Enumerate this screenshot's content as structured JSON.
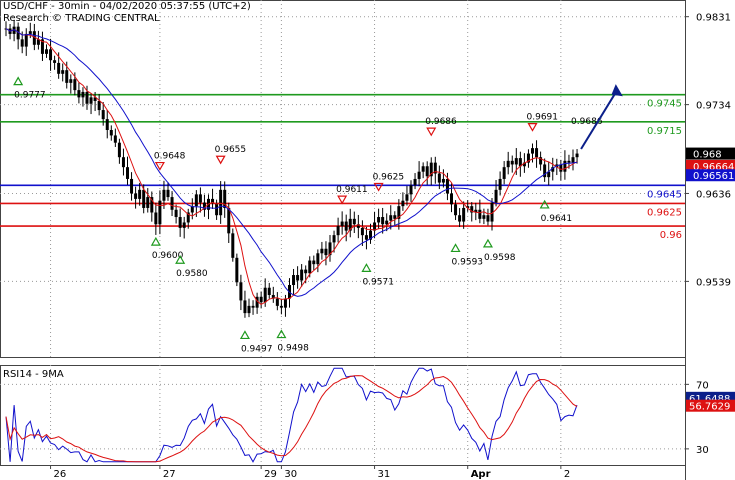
{
  "chart_data": {
    "type": "line",
    "title": "USD/CHF - 30min - 04/02/2020 05:37:55 (UTC+2)",
    "subtitle": "Research © TRADING CENTRAL",
    "price_panel": {
      "ylim": [
        0.946,
        0.9845
      ],
      "y_ticks": [
        {
          "label": "0.9831",
          "value": 0.9831
        },
        {
          "label": "0.9734",
          "value": 0.9734
        },
        {
          "label": "0.9636",
          "value": 0.9636
        },
        {
          "label": "0.9539",
          "value": 0.9539
        }
      ],
      "levels": [
        {
          "label": "0.9745",
          "value": 0.9745,
          "color": "#1f9a1f",
          "text_color": "#1f9a1f"
        },
        {
          "label": "0.9715",
          "value": 0.9715,
          "color": "#1f9a1f",
          "text_color": "#1f9a1f"
        },
        {
          "label": "0.9645",
          "value": 0.9645,
          "color": "#1111cc",
          "text_color": "#1111cc"
        },
        {
          "label": "0.9625",
          "value": 0.9625,
          "color": "#dd1111",
          "text_color": "#dd1111"
        },
        {
          "label": "0.96",
          "value": 0.96,
          "color": "#dd1111",
          "text_color": "#dd1111"
        }
      ],
      "price_badges": [
        {
          "label": "0.968",
          "value": 0.968,
          "bg": "#000000",
          "fg": "#ffffff"
        },
        {
          "label": "0.96664",
          "value": 0.96664,
          "bg": "#dd1111",
          "fg": "#ffffff"
        },
        {
          "label": "0.96561",
          "value": 0.96561,
          "bg": "#1111cc",
          "fg": "#ffffff"
        }
      ],
      "pivots": [
        {
          "label": "0.9777",
          "value": 0.9777,
          "bar": 3,
          "kind": "low"
        },
        {
          "label": "0.9648",
          "value": 0.9648,
          "bar": 38,
          "kind": "high"
        },
        {
          "label": "0.9600",
          "value": 0.96,
          "bar": 37,
          "kind": "low"
        },
        {
          "label": "0.9580",
          "value": 0.958,
          "bar": 43,
          "kind": "low"
        },
        {
          "label": "0.9655",
          "value": 0.9655,
          "bar": 53,
          "kind": "high"
        },
        {
          "label": "0.9497",
          "value": 0.9497,
          "bar": 59,
          "kind": "low"
        },
        {
          "label": "0.9498",
          "value": 0.9498,
          "bar": 68,
          "kind": "low"
        },
        {
          "label": "0.9611",
          "value": 0.9611,
          "bar": 83,
          "kind": "high"
        },
        {
          "label": "0.9625",
          "value": 0.9625,
          "bar": 92,
          "kind": "high"
        },
        {
          "label": "0.9571",
          "value": 0.9571,
          "bar": 89,
          "kind": "low"
        },
        {
          "label": "0.9686",
          "value": 0.9686,
          "bar": 105,
          "kind": "high"
        },
        {
          "label": "0.9593",
          "value": 0.9593,
          "bar": 111,
          "kind": "low"
        },
        {
          "label": "0.9598",
          "value": 0.9598,
          "bar": 119,
          "kind": "low"
        },
        {
          "label": "0.9691",
          "value": 0.9691,
          "bar": 130,
          "kind": "high"
        },
        {
          "label": "0.9641",
          "value": 0.9641,
          "bar": 133,
          "kind": "low"
        },
        {
          "label": "0.9686",
          "value": 0.9686,
          "bar": 141,
          "kind": "label"
        }
      ],
      "close_series": [
        0.9818,
        0.9812,
        0.982,
        0.9806,
        0.9798,
        0.9812,
        0.9815,
        0.98,
        0.9806,
        0.979,
        0.9795,
        0.9783,
        0.978,
        0.9768,
        0.9772,
        0.9758,
        0.9762,
        0.975,
        0.9742,
        0.9748,
        0.9735,
        0.9742,
        0.9738,
        0.9728,
        0.9718,
        0.9706,
        0.97,
        0.9692,
        0.9676,
        0.9665,
        0.9652,
        0.9636,
        0.963,
        0.964,
        0.962,
        0.9632,
        0.9615,
        0.9602,
        0.9628,
        0.964,
        0.9632,
        0.9618,
        0.961,
        0.9598,
        0.9604,
        0.9615,
        0.9622,
        0.9635,
        0.9626,
        0.9618,
        0.963,
        0.9625,
        0.9612,
        0.964,
        0.962,
        0.9592,
        0.9565,
        0.9538,
        0.9518,
        0.9504,
        0.9512,
        0.951,
        0.9522,
        0.9516,
        0.9532,
        0.9524,
        0.952,
        0.9512,
        0.951,
        0.952,
        0.9535,
        0.9546,
        0.954,
        0.9552,
        0.9548,
        0.9562,
        0.9558,
        0.957,
        0.9575,
        0.9568,
        0.9582,
        0.959,
        0.96,
        0.9605,
        0.9595,
        0.9608,
        0.9602,
        0.9598,
        0.959,
        0.9585,
        0.9595,
        0.9604,
        0.961,
        0.9602,
        0.9606,
        0.9612,
        0.9608,
        0.9622,
        0.9628,
        0.9635,
        0.9645,
        0.9652,
        0.966,
        0.9666,
        0.9655,
        0.967,
        0.9658,
        0.9648,
        0.9652,
        0.9636,
        0.9624,
        0.9612,
        0.9605,
        0.962,
        0.9622,
        0.9615,
        0.9618,
        0.9608,
        0.9612,
        0.9605,
        0.9626,
        0.964,
        0.9652,
        0.9665,
        0.9672,
        0.9668,
        0.9675,
        0.9666,
        0.967,
        0.968,
        0.9686,
        0.9676,
        0.9668,
        0.9654,
        0.966,
        0.9665,
        0.9668,
        0.966,
        0.9672,
        0.967,
        0.9676,
        0.968
      ],
      "forecast_arrow": {
        "from": 0.9685,
        "to": 0.9752,
        "color": "#0b1f8a"
      }
    },
    "rsi_panel": {
      "label": "RSI14 - 9MA",
      "ylim": [
        20,
        82
      ],
      "y_ticks": [
        {
          "label": "70",
          "value": 70
        },
        {
          "label": "30",
          "value": 30
        }
      ],
      "badges": [
        {
          "label": "61.6488",
          "value": 61.6488,
          "bg": "#0b1f8a",
          "fg": "#ffffff"
        },
        {
          "label": "56.7629",
          "value": 56.7629,
          "bg": "#dd1111",
          "fg": "#ffffff"
        }
      ]
    },
    "x_ticks": [
      {
        "label": "26",
        "bar": 11
      },
      {
        "label": "27",
        "bar": 38
      },
      {
        "label": "29",
        "bar": 63
      },
      {
        "label": "30",
        "bar": 68
      },
      {
        "label": "31",
        "bar": 91
      },
      {
        "label": "Apr",
        "bar": 114
      },
      {
        "label": "2",
        "bar": 137
      }
    ],
    "colors": {
      "candle": "#000000",
      "ma_fast": "#dd1111",
      "ma_slow": "#1111cc",
      "rsi": "#1111cc",
      "rsi_ma": "#dd1111",
      "grid": "#9a9a9a"
    }
  }
}
